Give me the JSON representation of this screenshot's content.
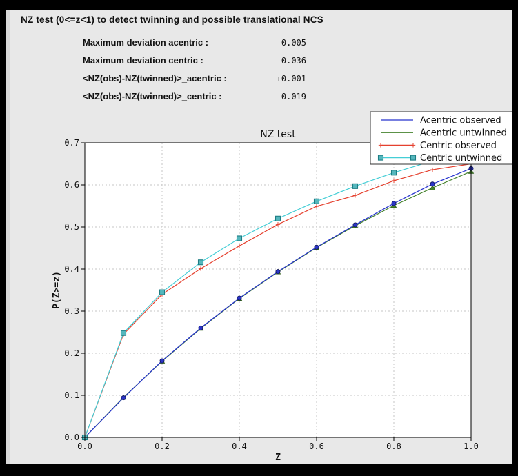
{
  "window": {
    "background": "#000000",
    "panel_background": "#e8e8e8"
  },
  "header": {
    "title": "NZ test (0<=z<1) to detect twinning and possible translational NCS"
  },
  "stats": {
    "rows": [
      {
        "label": "Maximum deviation acentric :",
        "value": "0.005"
      },
      {
        "label": "Maximum deviation centric :",
        "value": "0.036"
      },
      {
        "label": "<NZ(obs)-NZ(twinned)>_acentric :",
        "value": "+0.001"
      },
      {
        "label": "<NZ(obs)-NZ(twinned)>_centric :",
        "value": "-0.019"
      }
    ]
  },
  "chart_data": {
    "type": "line",
    "title": "NZ test",
    "xlabel": "Z",
    "ylabel": "P(Z>=z)",
    "xlim": [
      0.0,
      1.0
    ],
    "ylim": [
      0.0,
      0.7
    ],
    "xticks": [
      0.0,
      0.2,
      0.4,
      0.6,
      0.8,
      1.0
    ],
    "yticks": [
      0.0,
      0.1,
      0.2,
      0.3,
      0.4,
      0.5,
      0.6,
      0.7
    ],
    "grid": true,
    "grid_color": "#c4c4c4",
    "plot_bg": "#ffffff",
    "legend_position": "upper right",
    "x": [
      0.0,
      0.1,
      0.2,
      0.3,
      0.4,
      0.5,
      0.6,
      0.7,
      0.8,
      0.9,
      1.0
    ],
    "series": [
      {
        "name": "Acentric observed",
        "color": "#2633cd",
        "marker": "circle",
        "marker_fill": "#2b35c7",
        "marker_edge": "#10155a",
        "legend_markers": false,
        "zorder": 2,
        "values": [
          0.0,
          0.094,
          0.182,
          0.26,
          0.331,
          0.394,
          0.452,
          0.505,
          0.556,
          0.602,
          0.639
        ]
      },
      {
        "name": "Acentric untwinned",
        "color": "#45822d",
        "marker": "triangle",
        "marker_fill": "#46862c",
        "marker_edge": "#2c5a17",
        "legend_markers": false,
        "zorder": 1,
        "values": [
          0.0,
          0.095,
          0.181,
          0.259,
          0.33,
          0.393,
          0.451,
          0.503,
          0.551,
          0.593,
          0.632
        ]
      },
      {
        "name": "Centric observed",
        "color": "#e5402e",
        "marker": "plus",
        "marker_fill": "#e5402e",
        "marker_edge": "#e5402e",
        "legend_markers": true,
        "zorder": 3,
        "values": [
          0.0,
          0.245,
          0.34,
          0.401,
          0.455,
          0.506,
          0.549,
          0.575,
          0.61,
          0.636,
          0.65
        ]
      },
      {
        "name": "Centric untwinned",
        "color": "#45ced6",
        "marker": "square",
        "marker_fill": "#55b7bd",
        "marker_edge": "#1e7d84",
        "legend_markers": true,
        "zorder": 4,
        "values": [
          0.0,
          0.248,
          0.345,
          0.416,
          0.473,
          0.52,
          0.561,
          0.597,
          0.629,
          0.657,
          0.683
        ]
      }
    ]
  }
}
